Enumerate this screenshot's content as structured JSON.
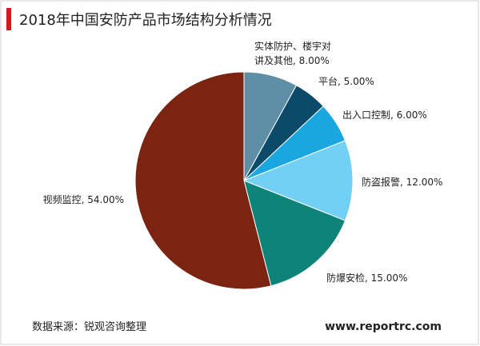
{
  "chart_data": {
    "type": "pie",
    "title": "2018年中国安防产品市场结构分析情况",
    "labels": [
      [
        "实体防护、楼宇对",
        "讲及其他, 8.00%"
      ],
      [
        "平台, 5.00%"
      ],
      [
        "出入口控制, 6.00%"
      ],
      [
        "防盗报警, 12.00%"
      ],
      [
        "防爆安检, 15.00%"
      ],
      [
        "视频监控, 54.00%"
      ]
    ],
    "values": [
      8,
      5,
      6,
      12,
      15,
      54
    ],
    "colors": [
      "#5f8fa6",
      "#0b4a68",
      "#1aa6de",
      "#72d0f5",
      "#0e8478",
      "#7a2411"
    ],
    "source": "数据来源：锐观咨询整理",
    "watermark": "www.reportrc.com"
  }
}
